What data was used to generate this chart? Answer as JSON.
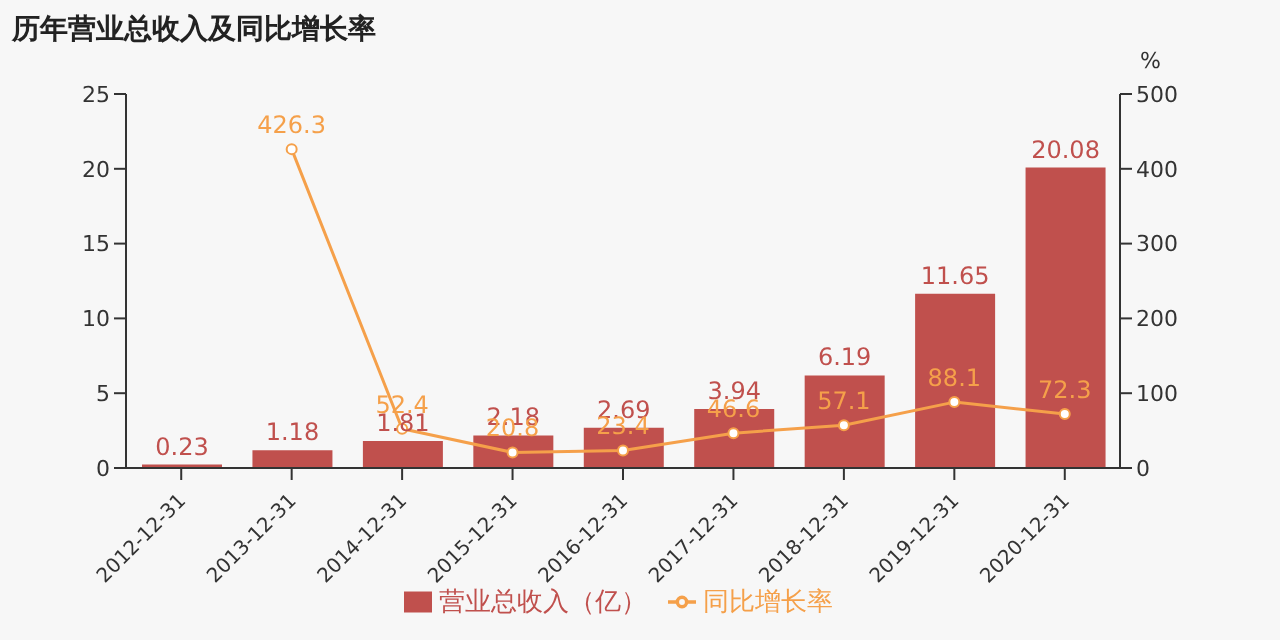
{
  "chart_data": {
    "type": "bar",
    "title": "历年营业总收入及同比增长率",
    "y2label": "%",
    "categories": [
      "2012-12-31",
      "2013-12-31",
      "2014-12-31",
      "2015-12-31",
      "2016-12-31",
      "2017-12-31",
      "2018-12-31",
      "2019-12-31",
      "2020-12-31"
    ],
    "series": [
      {
        "name": "营业总收入（亿）",
        "color": "#c0504d",
        "values": [
          0.23,
          1.18,
          1.81,
          2.18,
          2.69,
          3.94,
          6.19,
          11.65,
          20.08
        ]
      },
      {
        "name": "同比增长率",
        "type": "line",
        "axis": "y2",
        "color": "#f5a04a",
        "values": [
          null,
          426.3,
          52.4,
          20.8,
          23.4,
          46.6,
          57.1,
          88.1,
          72.3
        ]
      }
    ],
    "ylim": [
      0,
      25
    ],
    "yticks": [
      0,
      5,
      10,
      15,
      20,
      25
    ],
    "y2lim": [
      0,
      500
    ],
    "y2ticks": [
      0,
      100,
      200,
      300,
      400,
      500
    ],
    "data_labels": true,
    "legend": "bottom",
    "marker": "circle",
    "grid": false
  }
}
